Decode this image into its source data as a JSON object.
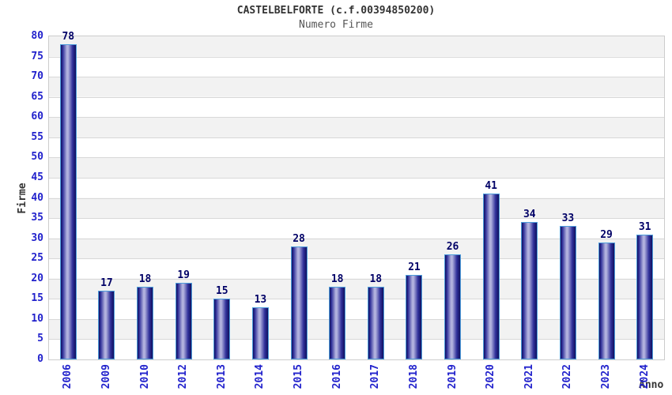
{
  "header": {
    "title": "CASTELBELFORTE (c.f.00394850200)",
    "subtitle": "Numero Firme"
  },
  "chart_data": {
    "type": "bar",
    "title": "CASTELBELFORTE (c.f.00394850200)",
    "subtitle": "Numero Firme",
    "categories": [
      "2006",
      "2009",
      "2010",
      "2012",
      "2013",
      "2014",
      "2015",
      "2016",
      "2017",
      "2018",
      "2019",
      "2020",
      "2021",
      "2022",
      "2023",
      "2024"
    ],
    "values": [
      78,
      17,
      18,
      19,
      15,
      13,
      28,
      18,
      18,
      21,
      26,
      41,
      34,
      33,
      29,
      31
    ],
    "xlabel": "Anno",
    "ylabel": "Firme",
    "ylim": [
      0,
      80
    ],
    "yticks": [
      0,
      5,
      10,
      15,
      20,
      25,
      30,
      35,
      40,
      45,
      50,
      55,
      60,
      65,
      70,
      75,
      80
    ],
    "grid": "horizontal-bands-alternating",
    "legend": "none",
    "bar_value_labels": true
  },
  "colors": {
    "tick_label": "#2222cc",
    "value_label": "#000066",
    "title": "#333333",
    "subtitle": "#555555",
    "axis_title": "#333333",
    "band_gray": "#f2f2f2",
    "band_white": "#ffffff",
    "gridline": "#d8d8d8",
    "plot_border": "#cccccc",
    "bar_border": "#4d9ddb",
    "bar_dark": "#10105e",
    "bar_mid": "#30309a",
    "bar_light": "#b2b2de"
  }
}
